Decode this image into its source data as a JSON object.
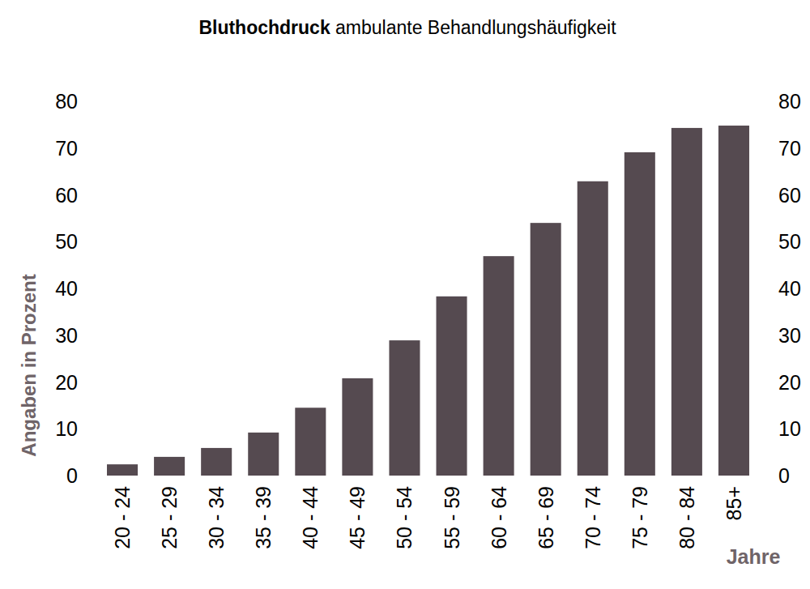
{
  "chart_data": {
    "type": "bar",
    "title": "Bluthochdruck ambulante Behandlungshäufigkeit",
    "ylabel": "Angaben in Prozent",
    "xlabel": "Jahre",
    "categories": [
      "20 - 24",
      "25 - 29",
      "30 - 34",
      "35 - 39",
      "40 - 44",
      "45 - 49",
      "50 - 54",
      "55 - 59",
      "60 - 64",
      "65 - 69",
      "70 - 74",
      "75 - 79",
      "80 - 84",
      "85+"
    ],
    "values": [
      2.4,
      4.0,
      5.9,
      9.2,
      14.5,
      20.8,
      28.9,
      38.3,
      46.9,
      54.0,
      62.9,
      69.1,
      74.3,
      74.8
    ],
    "color": "#554a50",
    "ylim": [
      0,
      80
    ],
    "yticks": [
      0,
      10,
      20,
      30,
      40,
      50,
      60,
      70,
      80
    ],
    "grid": false
  }
}
